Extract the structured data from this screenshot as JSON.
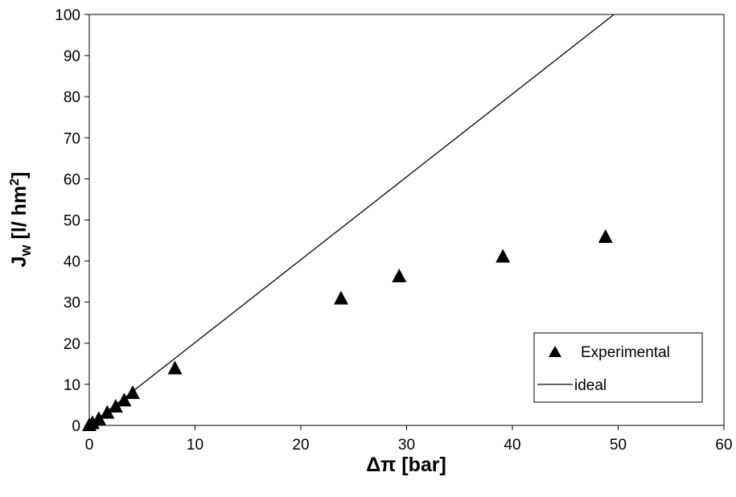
{
  "chart_data": {
    "type": "scatter",
    "xlabel_main": "Δπ",
    "xlabel_unit": " [bar]",
    "ylabel_main": "J",
    "ylabel_sub": "w",
    "ylabel_unit": " [l/ hm",
    "ylabel_sup": "2",
    "ylabel_close": "]",
    "xlim": [
      0,
      60
    ],
    "ylim": [
      0,
      100
    ],
    "xticks": [
      0,
      10,
      20,
      30,
      40,
      50,
      60
    ],
    "yticks": [
      0,
      10,
      20,
      30,
      40,
      50,
      60,
      70,
      80,
      90,
      100
    ],
    "grid": false,
    "legend_position": "bottom-right",
    "series": [
      {
        "name": "Experimental",
        "marker": "triangle",
        "color": "#000000",
        "points": [
          {
            "x": 0.0,
            "y": 0.0
          },
          {
            "x": 0.3,
            "y": 0.5
          },
          {
            "x": 0.9,
            "y": 1.5
          },
          {
            "x": 1.7,
            "y": 3.0
          },
          {
            "x": 2.5,
            "y": 4.5
          },
          {
            "x": 3.3,
            "y": 6.0
          },
          {
            "x": 4.1,
            "y": 7.8
          },
          {
            "x": 8.1,
            "y": 13.8
          },
          {
            "x": 23.8,
            "y": 30.8
          },
          {
            "x": 29.3,
            "y": 36.2
          },
          {
            "x": 39.1,
            "y": 41.0
          },
          {
            "x": 48.8,
            "y": 45.8
          }
        ]
      },
      {
        "name": "ideal",
        "marker": "line",
        "color": "#000000",
        "points": [
          {
            "x": 0,
            "y": 0
          },
          {
            "x": 49.6,
            "y": 100
          }
        ]
      }
    ]
  }
}
